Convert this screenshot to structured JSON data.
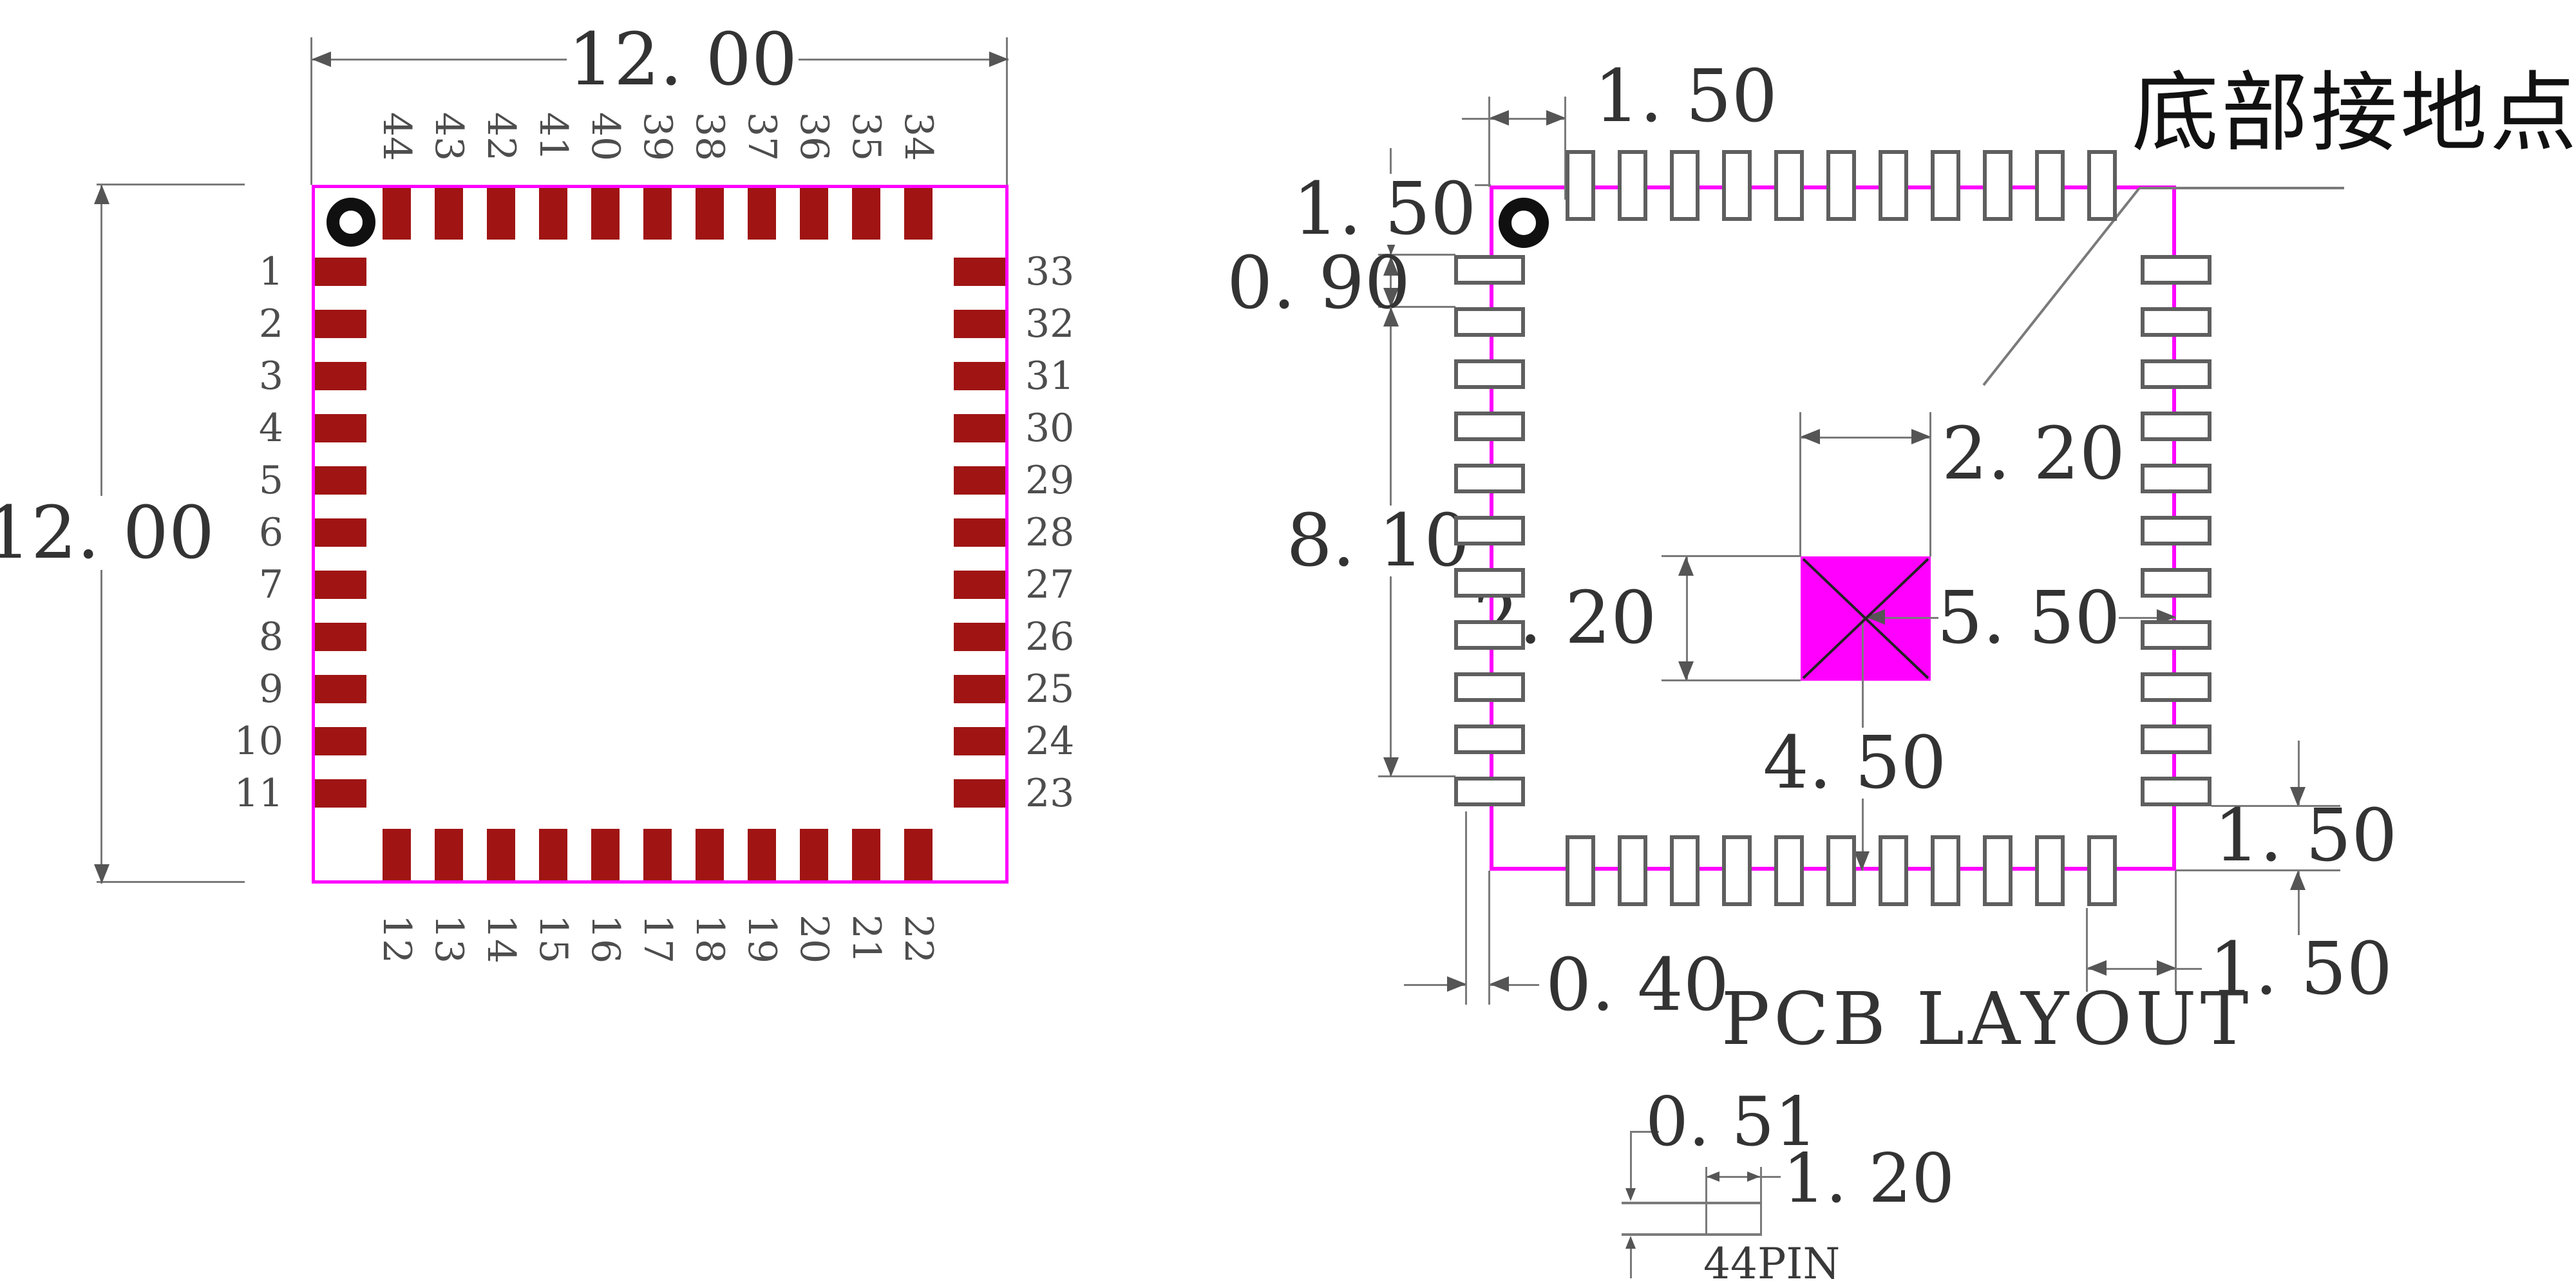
{
  "colors": {
    "outline_magenta": "#FF00FF",
    "pad_dark_red": "#A01414",
    "land_pad_outline": "#5F5F5F",
    "dimension_gray": "#7A7A7A",
    "text_dark": "#333333"
  },
  "left_package": {
    "width_label": "12. 00",
    "height_label": "12. 00",
    "pins": {
      "left": [
        "1",
        "2",
        "3",
        "4",
        "5",
        "6",
        "7",
        "8",
        "9",
        "10",
        "11"
      ],
      "bottom": [
        "12",
        "13",
        "14",
        "15",
        "16",
        "17",
        "18",
        "19",
        "20",
        "21",
        "22"
      ],
      "right_top_to_bottom": [
        "33",
        "32",
        "31",
        "30",
        "29",
        "28",
        "27",
        "26",
        "25",
        "24",
        "23"
      ],
      "top": [
        "44",
        "43",
        "42",
        "41",
        "40",
        "39",
        "38",
        "37",
        "36",
        "35",
        "34"
      ]
    }
  },
  "pcb_layout": {
    "caption": "PCB LAYOUT",
    "ground_note": "底部接地点",
    "dims": {
      "top_edge_to_first_pad": "1. 50",
      "top_to_first_left_pad": "1. 50",
      "left_pad_pitch": "0. 90",
      "left_pad_span": "8. 10",
      "center_pad_width": "2. 20",
      "center_pad_height": "2. 20",
      "center_to_right_edge": "5. 50",
      "center_to_bottom_edge": "4. 50",
      "pad_overhang": "0. 40",
      "right_pad_to_bottom": "1. 50",
      "bottom_pad_to_right": "1. 50"
    }
  },
  "detail": {
    "pad_width": "0. 51",
    "pad_length": "1. 20",
    "label": "44PIN"
  }
}
